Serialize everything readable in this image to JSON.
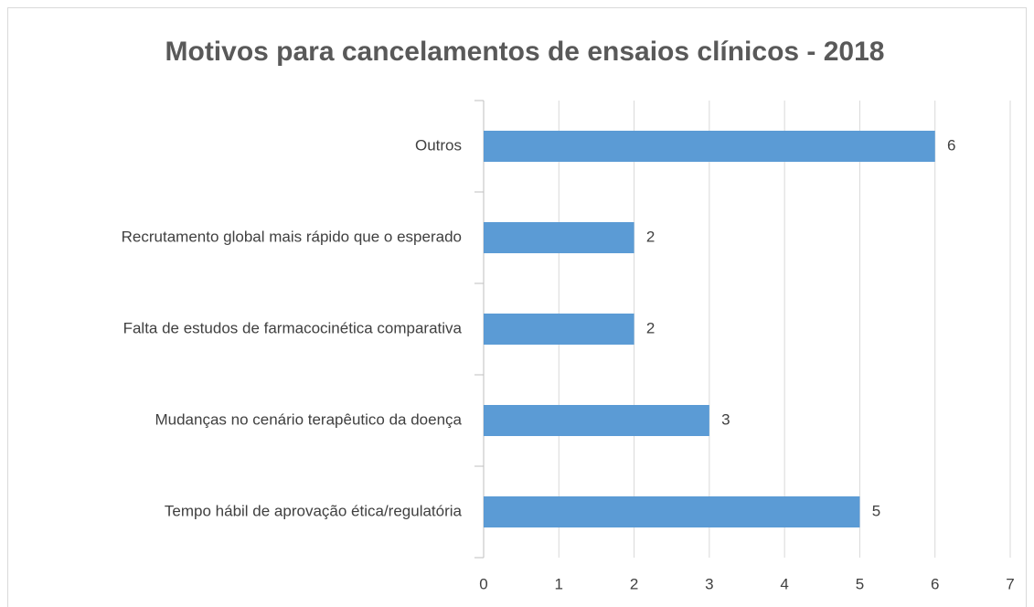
{
  "chart_data": {
    "type": "bar",
    "orientation": "horizontal",
    "title": "Motivos para cancelamentos de ensaios clínicos - 2018",
    "categories": [
      "Outros",
      "Recrutamento global mais rápido que o esperado",
      "Falta de estudos de farmacocinética comparativa",
      "Mudanças no cenário terapêutico da doença",
      "Tempo hábil de aprovação ética/regulatória"
    ],
    "values": [
      6,
      2,
      2,
      3,
      5
    ],
    "color": "#5b9bd5",
    "xlim": [
      0,
      7
    ],
    "xticks": [
      0,
      1,
      2,
      3,
      4,
      5,
      6,
      7
    ],
    "grid": true
  }
}
